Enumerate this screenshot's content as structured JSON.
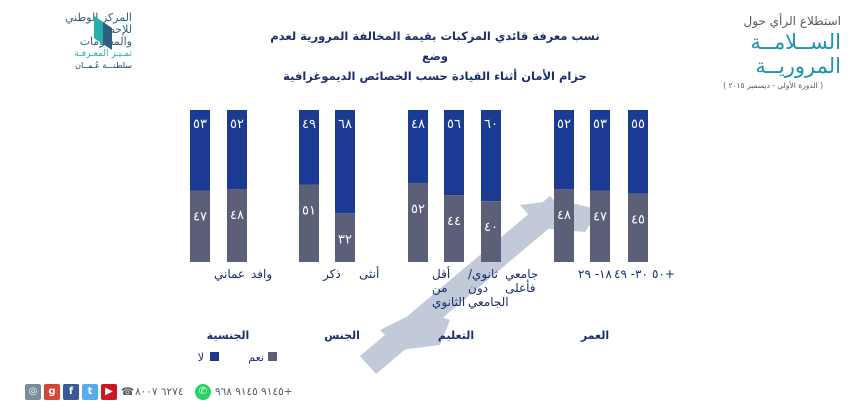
{
  "header": {
    "brand_pre": "استطلاع الرأي حول",
    "brand_title": "الســلامــة المروريــة",
    "brand_sub": "( الدورة الأولى - ديسمبر ٢٠١٥ )",
    "logo_line1": "المركز الوطني",
    "logo_line2": "للإحصاء",
    "logo_line3": "والمعلومات",
    "logo_tagline": "تمـيـز المعـرفـة",
    "logo_country": "سلطنـــة عُـمــان"
  },
  "footer": {
    "whatsapp_number": "٩١٤٥ ٩١٤٥ ٩٦٨+",
    "phone_number": "٦٢٧٤ ٨٠٠٧",
    "social_icons": [
      "youtube-icon",
      "twitter-icon",
      "facebook-icon",
      "googleplus-icon",
      "instagram-icon"
    ]
  },
  "chart_data": {
    "type": "bar",
    "stacked": true,
    "title": "نسب معرفة قائدي المركبات بقيمة المخالفة المرورية لعدم وضع حزام الأمان أثناء القيادة حسب الخصائص الديموغرافية",
    "title_lines": [
      "نسب معرفة قائدي المركبات بقيمة المخالفة المرورية لعدم وضع",
      "حزام الأمان أثناء القيادة حسب الخصائص الديموغرافية"
    ],
    "ylim": [
      0,
      100
    ],
    "groups": [
      {
        "name": "العمر",
        "categories": [
          "+٥٠",
          "٣٠- ٤٩",
          "١٨- ٢٩"
        ]
      },
      {
        "name": "التعليم",
        "categories": [
          "جامعي فأعلى",
          "ثانوي/ دون الجامعي",
          "أقل من الثانوي"
        ]
      },
      {
        "name": "الجنس",
        "categories": [
          "أنثى",
          "ذكر"
        ]
      },
      {
        "name": "الجنسية",
        "categories": [
          "وافد",
          "عماني"
        ]
      }
    ],
    "categories": [
      "+٥٠",
      "٣٠- ٤٩",
      "١٨- ٢٩",
      "جامعي فأعلى",
      "ثانوي/ دون الجامعي",
      "أقل من الثانوي",
      "أنثى",
      "ذكر",
      "وافد",
      "عماني"
    ],
    "series": [
      {
        "name": "نعم",
        "color": "#5b6078",
        "values": [
          45,
          47,
          48,
          40,
          44,
          52,
          32,
          51,
          48,
          47
        ],
        "labels": [
          "٤٥",
          "٤٧",
          "٤٨",
          "٤٠",
          "٤٤",
          "٥٢",
          "٣٢",
          "٥١",
          "٤٨",
          "٤٧"
        ]
      },
      {
        "name": "لا",
        "color": "#1a3a93",
        "values": [
          55,
          53,
          52,
          60,
          56,
          48,
          68,
          49,
          52,
          53
        ],
        "labels": [
          "٥٥",
          "٥٣",
          "٥٢",
          "٦٠",
          "٥٦",
          "٤٨",
          "٦٨",
          "٤٩",
          "٥٢",
          "٥٣"
        ]
      }
    ],
    "legend": {
      "position": "bottom-left"
    },
    "grid": false
  }
}
